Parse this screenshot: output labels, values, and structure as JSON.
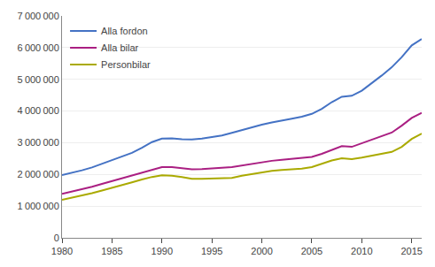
{
  "chart_data": {
    "type": "line",
    "x": [
      1980,
      1981,
      1982,
      1983,
      1984,
      1985,
      1986,
      1987,
      1988,
      1989,
      1990,
      1991,
      1992,
      1993,
      1994,
      1995,
      1996,
      1997,
      1998,
      1999,
      2000,
      2001,
      2002,
      2003,
      2004,
      2005,
      2006,
      2007,
      2008,
      2009,
      2010,
      2011,
      2012,
      2013,
      2014,
      2015,
      2016
    ],
    "series": [
      {
        "name": "Alla fordon",
        "color": "#4472C4",
        "values": [
          1980000,
          2050000,
          2130000,
          2220000,
          2330000,
          2440000,
          2560000,
          2680000,
          2840000,
          3020000,
          3130000,
          3140000,
          3110000,
          3100000,
          3130000,
          3170000,
          3230000,
          3310000,
          3400000,
          3480000,
          3570000,
          3640000,
          3710000,
          3760000,
          3820000,
          3910000,
          4070000,
          4280000,
          4450000,
          4480000,
          4640000,
          4870000,
          5120000,
          5380000,
          5700000,
          6070000,
          6270000
        ]
      },
      {
        "name": "Alla bilar",
        "color": "#AA1F82",
        "values": [
          1390000,
          1460000,
          1530000,
          1610000,
          1700000,
          1790000,
          1880000,
          1970000,
          2060000,
          2150000,
          2230000,
          2230000,
          2200000,
          2160000,
          2170000,
          2200000,
          2210000,
          2230000,
          2280000,
          2330000,
          2390000,
          2430000,
          2460000,
          2490000,
          2510000,
          2550000,
          2650000,
          2780000,
          2890000,
          2870000,
          2980000,
          3090000,
          3200000,
          3320000,
          3540000,
          3780000,
          3940000
        ]
      },
      {
        "name": "Personbilar",
        "color": "#AAAA00",
        "values": [
          1200000,
          1265000,
          1340000,
          1410000,
          1490000,
          1570000,
          1660000,
          1750000,
          1840000,
          1920000,
          1970000,
          1960000,
          1920000,
          1860000,
          1860000,
          1870000,
          1870000,
          1890000,
          1960000,
          2010000,
          2080000,
          2110000,
          2140000,
          2160000,
          2180000,
          2230000,
          2330000,
          2440000,
          2510000,
          2480000,
          2530000,
          2590000,
          2650000,
          2710000,
          2870000,
          3120000,
          3290000
        ]
      }
    ],
    "xlim": [
      1980,
      2016
    ],
    "xticks": [
      1980,
      1985,
      1990,
      1995,
      2000,
      2005,
      2010,
      2015
    ],
    "ylim": [
      0,
      7000000
    ],
    "yticks": [
      0,
      {
        "value": 1000000,
        "label": "1 000 000"
      },
      {
        "value": 2000000,
        "label": "2 000 000"
      },
      {
        "value": 3000000,
        "label": "3 000 000"
      },
      {
        "value": 4000000,
        "label": "4 000 000"
      },
      {
        "value": 5000000,
        "label": "5 000 000"
      },
      {
        "value": 6000000,
        "label": "6 000 000"
      },
      {
        "value": 7000000,
        "label": "7 000 000"
      }
    ],
    "grid": true,
    "legend": "upper left"
  }
}
